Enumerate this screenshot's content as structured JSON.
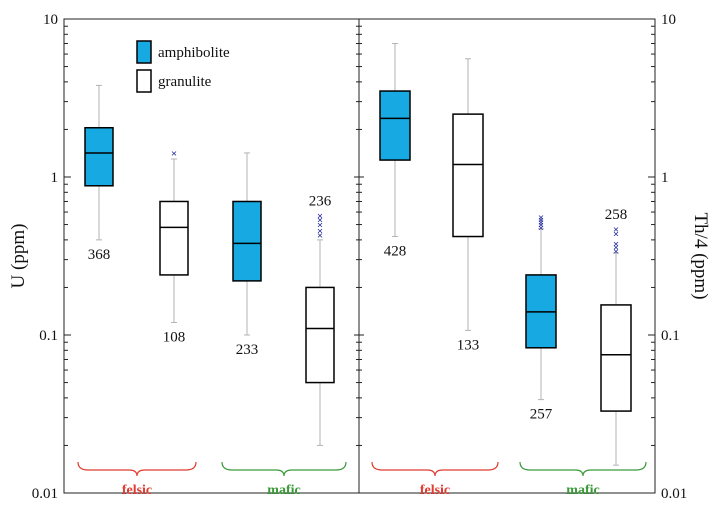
{
  "chart_data": {
    "type": "box",
    "scale": "log",
    "ylim": [
      0.01,
      10
    ],
    "ylabel_left": "U (ppm)",
    "ylabel_right": "Th/4 (ppm)",
    "y_ticks": [
      "0.01",
      "0.1",
      "1",
      "10"
    ],
    "legend": [
      {
        "name": "amphibolite",
        "color": "#17a9e1"
      },
      {
        "name": "granulite",
        "color": "#ffffff"
      }
    ],
    "legend_position": "top-left",
    "group_labels": [
      {
        "text": "felsic",
        "color": "#e03c31"
      },
      {
        "text": "mafic",
        "color": "#3a9a3a"
      },
      {
        "text": "felsic",
        "color": "#e03c31"
      },
      {
        "text": "mafic",
        "color": "#3a9a3a"
      }
    ],
    "panels": [
      {
        "variable": "U",
        "boxes": [
          {
            "rock": "felsic",
            "series": "amphibolite",
            "n": "368",
            "whisker_low": 0.4,
            "q1": 0.88,
            "median": 1.42,
            "q3": 2.05,
            "whisker_high": 3.8,
            "outliers": []
          },
          {
            "rock": "felsic",
            "series": "granulite",
            "n": "108",
            "whisker_low": 0.12,
            "q1": 0.24,
            "median": 0.48,
            "q3": 0.7,
            "whisker_high": 1.3,
            "outliers": [
              1.42
            ]
          },
          {
            "rock": "mafic",
            "series": "amphibolite",
            "n": "233",
            "whisker_low": 0.1,
            "q1": 0.22,
            "median": 0.38,
            "q3": 0.7,
            "whisker_high": 1.42,
            "outliers": []
          },
          {
            "rock": "mafic",
            "series": "granulite",
            "n": "236",
            "whisker_low": 0.02,
            "q1": 0.05,
            "median": 0.11,
            "q3": 0.2,
            "whisker_high": 0.4,
            "outliers": [
              0.43,
              0.46,
              0.5,
              0.54,
              0.57
            ]
          }
        ]
      },
      {
        "variable": "Th/4",
        "boxes": [
          {
            "rock": "felsic",
            "series": "amphibolite",
            "n": "428",
            "whisker_low": 0.42,
            "q1": 1.28,
            "median": 2.35,
            "q3": 3.5,
            "whisker_high": 7.0,
            "outliers": []
          },
          {
            "rock": "felsic",
            "series": "granulite",
            "n": "133",
            "whisker_low": 0.107,
            "q1": 0.42,
            "median": 1.2,
            "q3": 2.5,
            "whisker_high": 5.6,
            "outliers": []
          },
          {
            "rock": "mafic",
            "series": "amphibolite",
            "n": "257",
            "whisker_low": 0.039,
            "q1": 0.083,
            "median": 0.14,
            "q3": 0.24,
            "whisker_high": 0.47,
            "outliers": [
              0.48,
              0.5,
              0.52,
              0.54,
              0.56
            ]
          },
          {
            "rock": "mafic",
            "series": "granulite",
            "n": "258",
            "whisker_low": 0.015,
            "q1": 0.033,
            "median": 0.075,
            "q3": 0.155,
            "whisker_high": 0.33,
            "outliers": [
              0.34,
              0.36,
              0.38,
              0.44,
              0.47
            ]
          }
        ]
      }
    ]
  }
}
